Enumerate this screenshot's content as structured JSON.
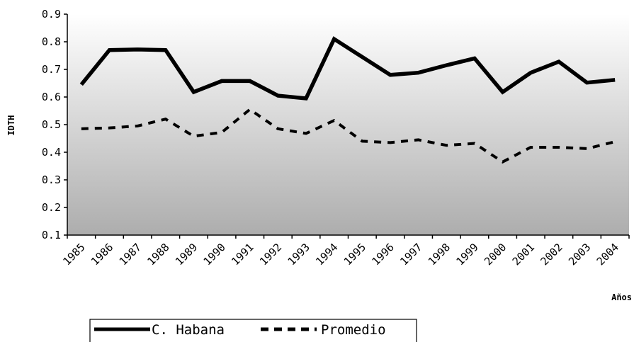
{
  "chart_data": {
    "type": "line",
    "title": "",
    "xlabel": "Años",
    "ylabel": "IDTH",
    "ylim": [
      0.1,
      0.9
    ],
    "yticks": [
      "0.1",
      "0.2",
      "0.3",
      "0.4",
      "0.5",
      "0.6",
      "0.7",
      "0.8",
      "0.9"
    ],
    "categories": [
      "1985",
      "1986",
      "1987",
      "1988",
      "1989",
      "1990",
      "1991",
      "1992",
      "1993",
      "1994",
      "1995",
      "1996",
      "1997",
      "1998",
      "1999",
      "2000",
      "2001",
      "2002",
      "2003",
      "2004"
    ],
    "series": [
      {
        "name": "C. Habana",
        "style": "solid",
        "color": "#000000",
        "values": [
          0.645,
          0.77,
          0.772,
          0.77,
          0.618,
          0.658,
          0.658,
          0.605,
          0.595,
          0.81,
          0.745,
          0.68,
          0.688,
          0.715,
          0.74,
          0.618,
          0.688,
          0.728,
          0.652,
          0.662
        ]
      },
      {
        "name": "Promedio",
        "style": "dashed",
        "color": "#000000",
        "values": [
          0.485,
          0.488,
          0.495,
          0.52,
          0.458,
          0.472,
          0.555,
          0.485,
          0.468,
          0.515,
          0.44,
          0.435,
          0.445,
          0.425,
          0.432,
          0.365,
          0.418,
          0.418,
          0.413,
          0.438
        ]
      }
    ],
    "grid": false,
    "background": "gradient white-to-gray",
    "legend_position": "bottom-left"
  }
}
